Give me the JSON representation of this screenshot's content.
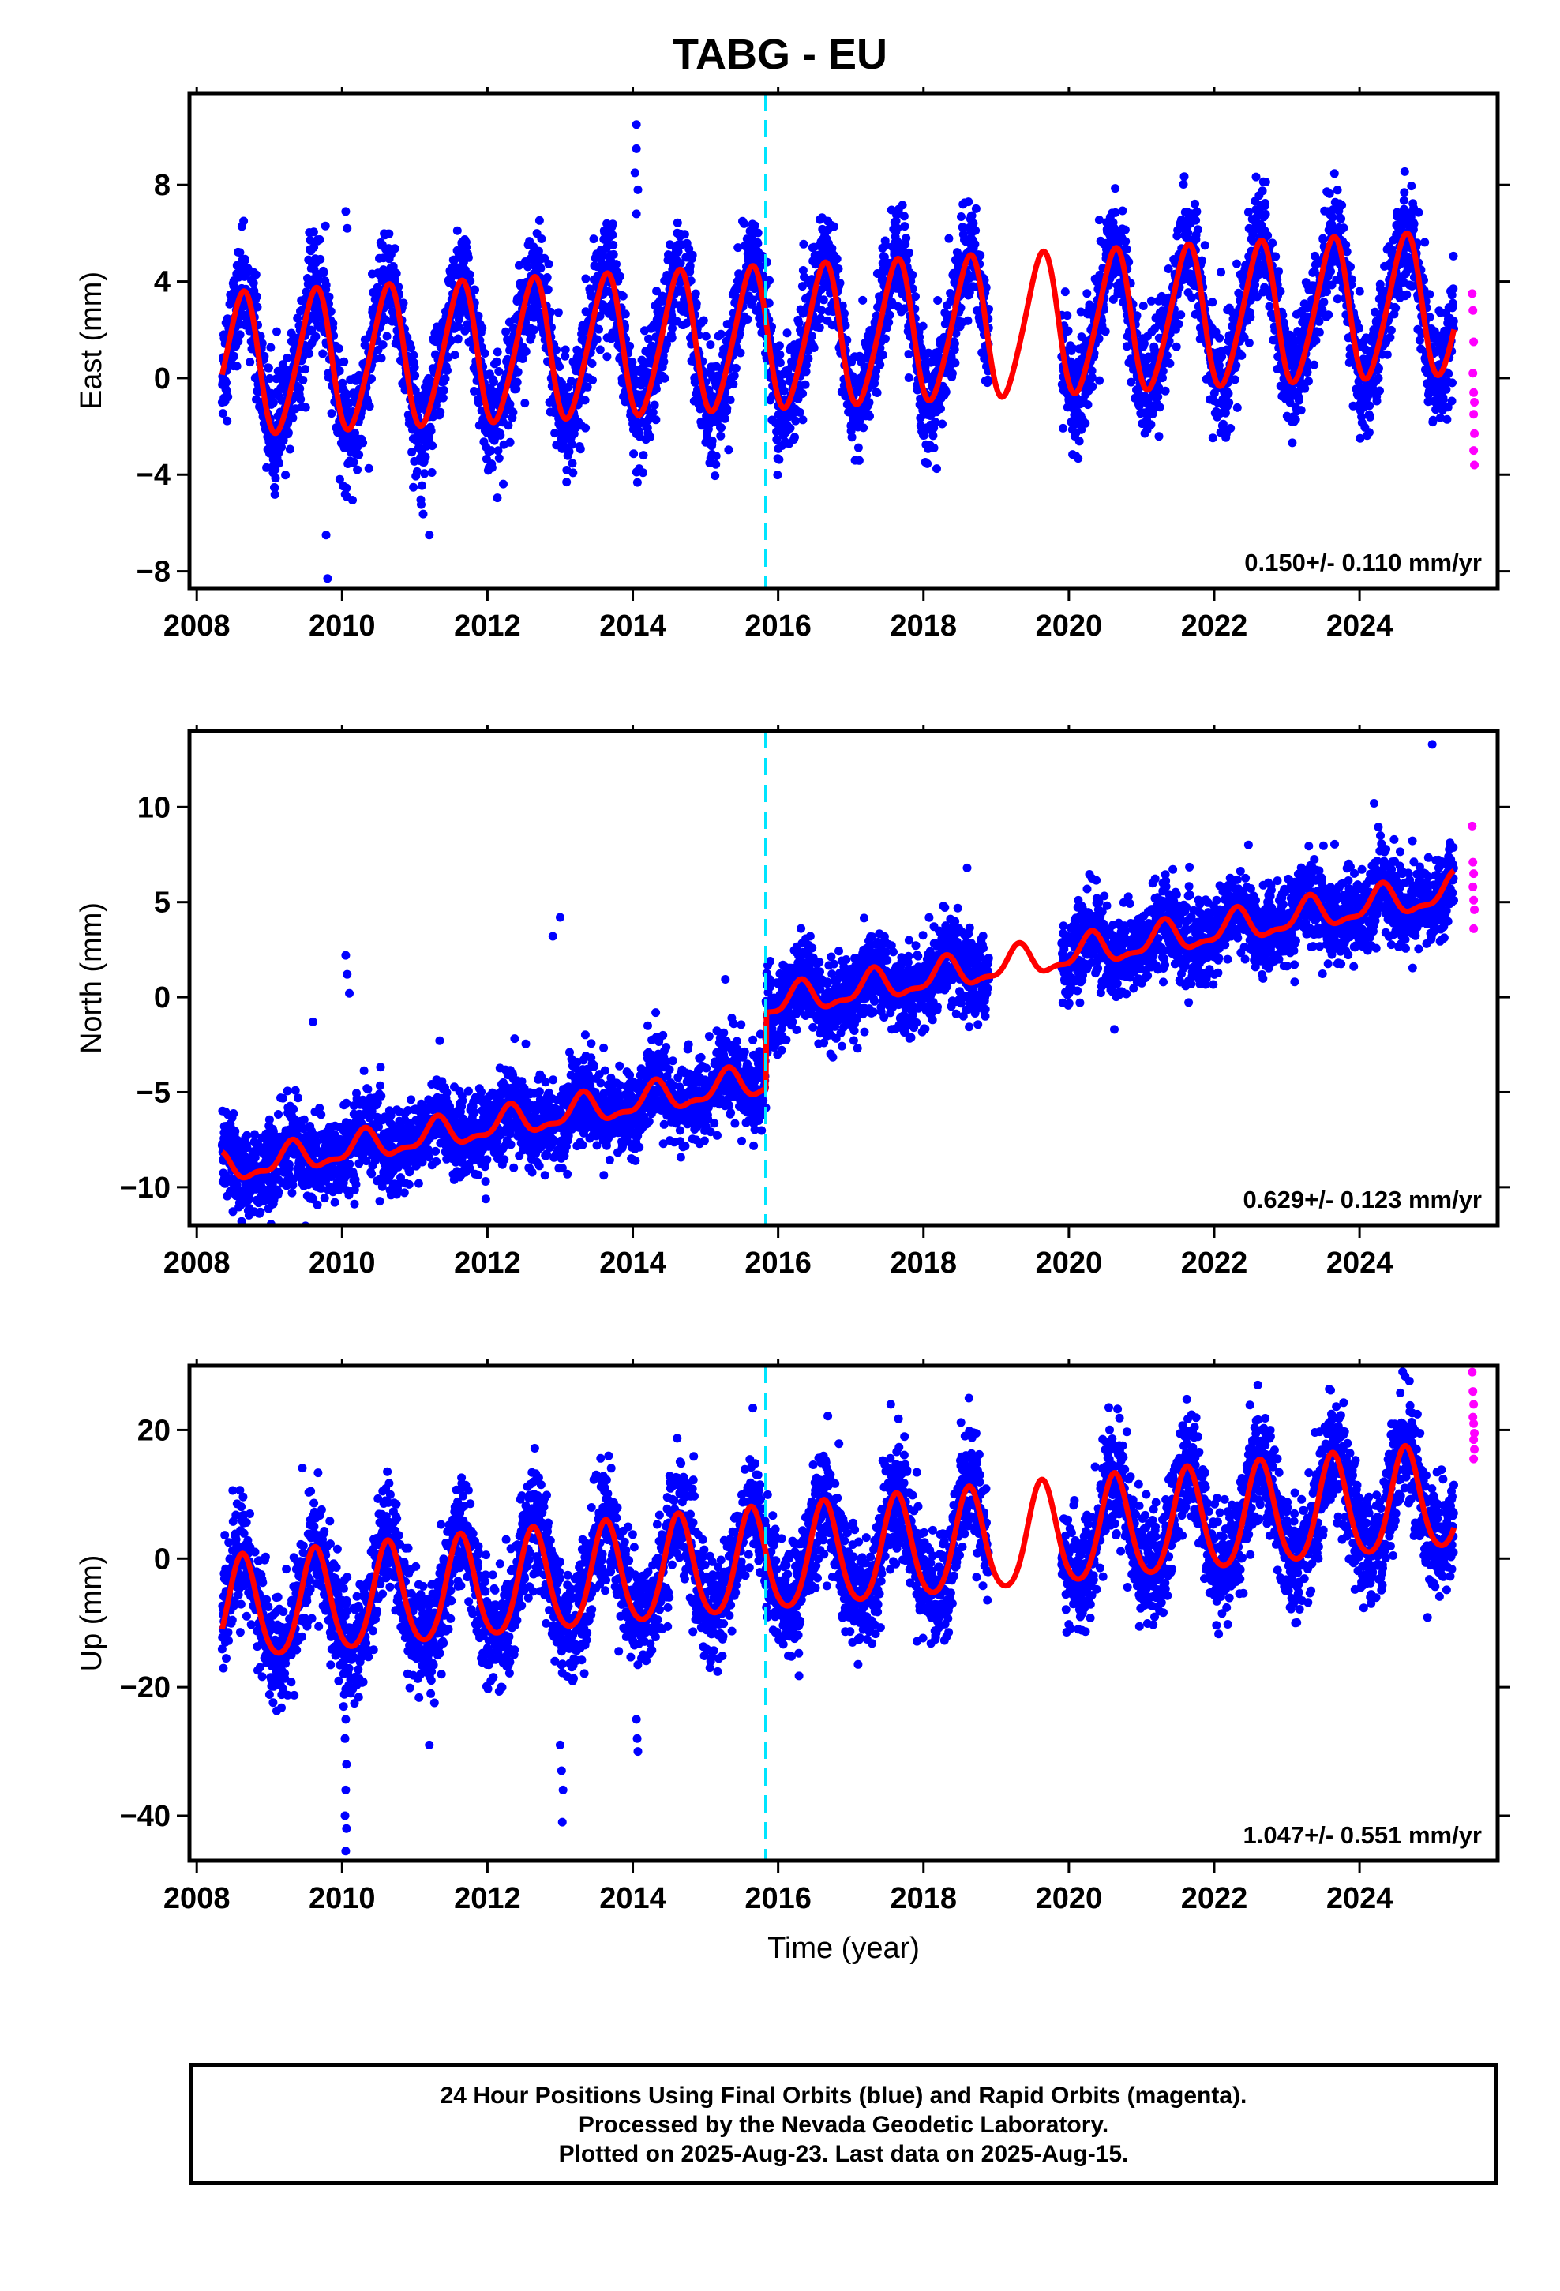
{
  "title": "TABG - EU",
  "xlabel": "Time (year)",
  "footer": {
    "line1": "24 Hour Positions Using Final Orbits (blue) and Rapid Orbits (magenta).",
    "line2": "Processed by the Nevada Geodetic Laboratory.",
    "line3": "Plotted on 2025-Aug-23. Last data on 2025-Aug-15."
  },
  "colors": {
    "final": "#0000ff",
    "rapid": "#ff00ff",
    "model": "#ff0000",
    "step": "#00e5ff"
  },
  "chart_data": [
    {
      "type": "scatter",
      "component": "east",
      "ylabel": "East (mm)",
      "rate": "0.150+/- 0.110 mm/yr",
      "xlim": [
        2007.9,
        2025.9
      ],
      "ylim": [
        -8.7,
        11.8
      ],
      "xticks": [
        2008,
        2010,
        2012,
        2014,
        2016,
        2018,
        2020,
        2022,
        2024
      ],
      "yticks": [
        -8,
        -4,
        0,
        4,
        8
      ],
      "step_epoch": 2015.83,
      "data_start": 2008.35,
      "data_end": 2025.3,
      "gaps": [
        [
          2018.9,
          2019.9
        ]
      ],
      "model": {
        "offset": 0.5,
        "rate": 0.15,
        "annual_amp_start": 2.9,
        "annual_amp_end": 2.9,
        "annual_phase": 0.37,
        "semi_amp": 0.35,
        "semi_phase": 0.1,
        "step": 0.0
      },
      "scatter_sd": 1.1,
      "outliers": [
        [
          2014.05,
          10.5
        ],
        [
          2014.05,
          9.5
        ],
        [
          2014.03,
          8.5
        ],
        [
          2014.07,
          7.8
        ],
        [
          2014.05,
          6.8
        ],
        [
          2010.05,
          6.9
        ],
        [
          2010.07,
          6.2
        ],
        [
          2009.8,
          -8.3
        ],
        [
          2009.78,
          -6.5
        ],
        [
          2011.2,
          -6.5
        ],
        [
          2011.6,
          5.2
        ]
      ],
      "rapid": [
        [
          2025.55,
          3.5
        ],
        [
          2025.56,
          2.8
        ],
        [
          2025.57,
          1.5
        ],
        [
          2025.56,
          0.2
        ],
        [
          2025.57,
          -0.6
        ],
        [
          2025.58,
          -1.0
        ],
        [
          2025.57,
          -1.5
        ],
        [
          2025.58,
          -2.3
        ],
        [
          2025.57,
          -3.0
        ],
        [
          2025.58,
          -3.6
        ]
      ]
    },
    {
      "type": "scatter",
      "component": "north",
      "ylabel": "North (mm)",
      "rate": "0.629+/- 0.123 mm/yr",
      "xlim": [
        2007.9,
        2025.9
      ],
      "ylim": [
        -12,
        14
      ],
      "xticks": [
        2008,
        2010,
        2012,
        2014,
        2016,
        2018,
        2020,
        2022,
        2024
      ],
      "yticks": [
        -10,
        -5,
        0,
        5,
        10
      ],
      "step_epoch": 2015.83,
      "data_start": 2008.35,
      "data_end": 2025.3,
      "gaps": [
        [
          2018.9,
          2019.9
        ]
      ],
      "model": {
        "offset": -9.1,
        "rate": 0.629,
        "annual_amp_start": 0.7,
        "annual_amp_end": 0.8,
        "annual_phase": 0.05,
        "semi_amp": 0.3,
        "semi_phase": 0.2,
        "step": 4.0
      },
      "scatter_sd": 1.1,
      "outliers": [
        [
          2010.05,
          2.2
        ],
        [
          2010.07,
          1.2
        ],
        [
          2010.1,
          0.2
        ],
        [
          2009.9,
          -10.8
        ],
        [
          2013.0,
          4.2
        ],
        [
          2012.9,
          3.2
        ],
        [
          2025.0,
          13.3
        ],
        [
          2024.2,
          10.2
        ],
        [
          2009.6,
          -1.3
        ],
        [
          2018.6,
          6.8
        ]
      ],
      "rapid": [
        [
          2025.55,
          9.0
        ],
        [
          2025.56,
          7.1
        ],
        [
          2025.57,
          6.5
        ],
        [
          2025.56,
          5.8
        ],
        [
          2025.57,
          5.1
        ],
        [
          2025.58,
          4.6
        ],
        [
          2025.57,
          3.6
        ]
      ]
    },
    {
      "type": "scatter",
      "component": "up",
      "ylabel": "Up (mm)",
      "rate": "1.047+/- 0.551 mm/yr",
      "xlim": [
        2007.9,
        2025.9
      ],
      "ylim": [
        -47,
        30
      ],
      "xticks": [
        2008,
        2010,
        2012,
        2014,
        2016,
        2018,
        2020,
        2022,
        2024
      ],
      "yticks": [
        -40,
        -20,
        0,
        20
      ],
      "step_epoch": 2015.83,
      "data_start": 2008.35,
      "data_end": 2025.3,
      "gaps": [
        [
          2018.9,
          2019.9
        ]
      ],
      "model": {
        "offset": -8.5,
        "rate": 1.047,
        "annual_amp_start": 8.0,
        "annual_amp_end": 8.0,
        "annual_phase": 0.38,
        "semi_amp": 1.0,
        "semi_phase": 0.0,
        "step": 0.0
      },
      "scatter_sd": 4.3,
      "outliers": [
        [
          2010.02,
          -23
        ],
        [
          2010.05,
          -25
        ],
        [
          2010.04,
          -28
        ],
        [
          2010.06,
          -32
        ],
        [
          2010.05,
          -36
        ],
        [
          2010.04,
          -40
        ],
        [
          2010.06,
          -42
        ],
        [
          2010.05,
          -45.5
        ],
        [
          2013.0,
          -29
        ],
        [
          2013.02,
          -33
        ],
        [
          2013.04,
          -36
        ],
        [
          2013.03,
          -41
        ],
        [
          2014.05,
          -25
        ],
        [
          2014.06,
          -28
        ],
        [
          2014.07,
          -30
        ],
        [
          2011.2,
          -29
        ],
        [
          2017.55,
          24
        ],
        [
          2022.6,
          27
        ],
        [
          2020.55,
          23.5
        ]
      ],
      "rapid": [
        [
          2025.55,
          29
        ],
        [
          2025.56,
          26
        ],
        [
          2025.57,
          24
        ],
        [
          2025.56,
          22
        ],
        [
          2025.57,
          21
        ],
        [
          2025.58,
          19.5
        ],
        [
          2025.57,
          18.5
        ],
        [
          2025.58,
          17
        ],
        [
          2025.57,
          15.5
        ]
      ]
    }
  ]
}
